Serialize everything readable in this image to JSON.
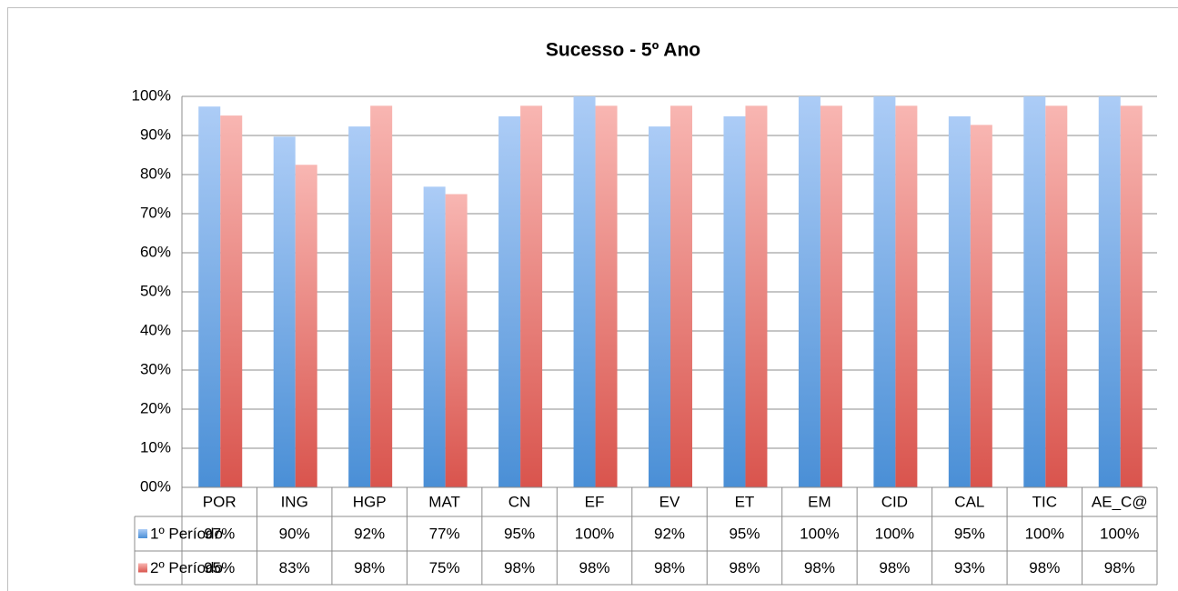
{
  "chart_data": {
    "type": "bar",
    "title": "Sucesso - 5º Ano",
    "categories": [
      "POR",
      "ING",
      "HGP",
      "MAT",
      "CN",
      "EF",
      "EV",
      "ET",
      "EM",
      "CID",
      "CAL",
      "TIC",
      "AE_C@"
    ],
    "series": [
      {
        "name": "1º Período",
        "color": "#4a8fd6",
        "values": [
          97.4,
          89.7,
          92.3,
          76.9,
          94.9,
          100,
          92.3,
          94.9,
          100,
          100,
          94.9,
          100,
          100
        ],
        "value_labels": [
          "97%",
          "90%",
          "92%",
          "77%",
          "95%",
          "100%",
          "92%",
          "95%",
          "100%",
          "100%",
          "95%",
          "100%",
          "100%"
        ]
      },
      {
        "name": "2º Período",
        "color": "#d9544d",
        "values": [
          95.1,
          82.5,
          97.6,
          75.0,
          97.6,
          97.6,
          97.6,
          97.6,
          97.6,
          97.6,
          92.7,
          97.6,
          97.6
        ],
        "value_labels": [
          "95%",
          "83%",
          "98%",
          "75%",
          "98%",
          "98%",
          "98%",
          "98%",
          "98%",
          "98%",
          "93%",
          "98%",
          "98%"
        ]
      }
    ],
    "ylim": [
      0,
      100
    ],
    "yticks": [
      {
        "value": 0,
        "label": "00%"
      },
      {
        "value": 10,
        "label": "10%"
      },
      {
        "value": 20,
        "label": "20%"
      },
      {
        "value": 30,
        "label": "30%"
      },
      {
        "value": 40,
        "label": "40%"
      },
      {
        "value": 50,
        "label": "50%"
      },
      {
        "value": 60,
        "label": "60%"
      },
      {
        "value": 70,
        "label": "70%"
      },
      {
        "value": 80,
        "label": "80%"
      },
      {
        "value": 90,
        "label": "90%"
      },
      {
        "value": 100,
        "label": "100%"
      }
    ],
    "grid": true
  }
}
